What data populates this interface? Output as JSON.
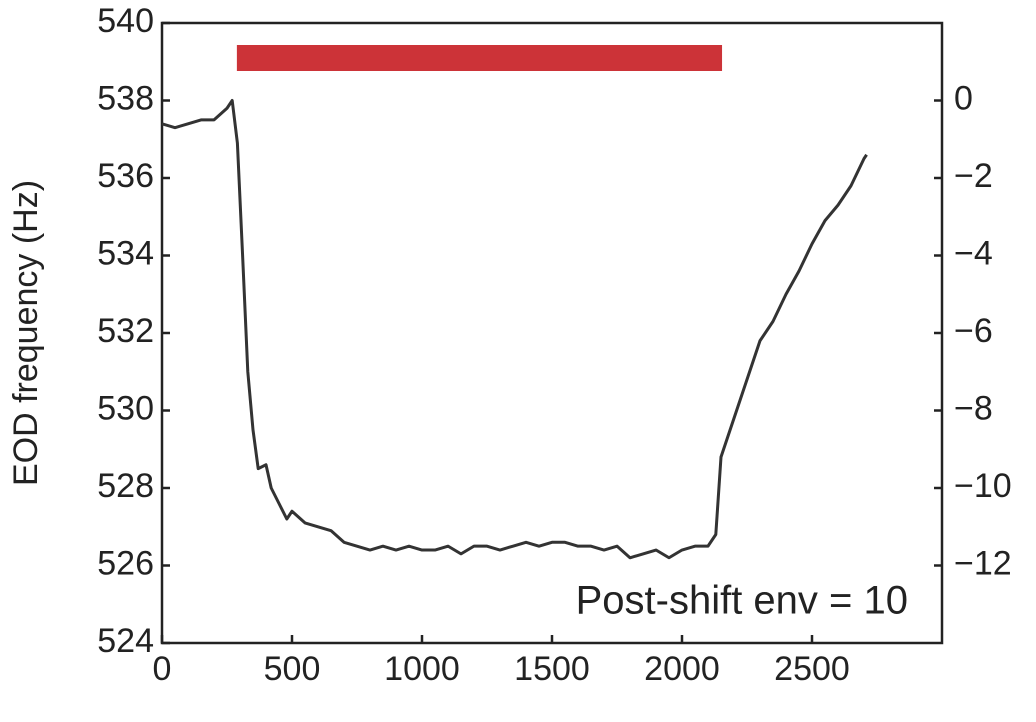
{
  "chart_data": {
    "type": "line",
    "ylabel": "EOD frequency (Hz)",
    "annotation": {
      "text": "Post-shift env = 10",
      "color": "#cc3338"
    },
    "stimulus_bar": {
      "x": [
        288,
        2154
      ],
      "color": "#cc3338"
    },
    "xlim": [
      0,
      3000
    ],
    "xticks": [
      0,
      500,
      1000,
      1500,
      2000,
      2500
    ],
    "ylim": [
      524,
      540
    ],
    "yticks": [
      524,
      526,
      528,
      530,
      532,
      534,
      536,
      538,
      540
    ],
    "y2lim": [
      -14,
      2
    ],
    "y2ticks": [
      {
        "value": 0,
        "label": "0"
      },
      {
        "value": -2,
        "label": "−2"
      },
      {
        "value": -4,
        "label": "−4"
      },
      {
        "value": -6,
        "label": "−6"
      },
      {
        "value": -8,
        "label": "−8"
      },
      {
        "value": -10,
        "label": "−10"
      },
      {
        "value": -12,
        "label": "−12"
      }
    ],
    "x": [
      0,
      50,
      100,
      150,
      200,
      250,
      270,
      290,
      310,
      330,
      350,
      370,
      400,
      420,
      450,
      480,
      500,
      550,
      600,
      650,
      700,
      750,
      800,
      850,
      900,
      950,
      1000,
      1050,
      1100,
      1150,
      1200,
      1250,
      1300,
      1350,
      1400,
      1450,
      1500,
      1550,
      1600,
      1650,
      1700,
      1750,
      1800,
      1850,
      1900,
      1950,
      2000,
      2050,
      2100,
      2130,
      2150,
      2200,
      2250,
      2300,
      2350,
      2400,
      2450,
      2500,
      2550,
      2600,
      2650,
      2700,
      2710
    ],
    "series": [
      {
        "color": "#333333",
        "values": [
          537.4,
          537.3,
          537.4,
          537.5,
          537.5,
          537.8,
          538.0,
          536.9,
          534.0,
          531.0,
          529.5,
          528.5,
          528.6,
          528.0,
          527.6,
          527.2,
          527.4,
          527.1,
          527.0,
          526.9,
          526.6,
          526.5,
          526.4,
          526.5,
          526.4,
          526.5,
          526.4,
          526.4,
          526.5,
          526.3,
          526.5,
          526.5,
          526.4,
          526.5,
          526.6,
          526.5,
          526.6,
          526.6,
          526.5,
          526.5,
          526.4,
          526.5,
          526.2,
          526.3,
          526.4,
          526.2,
          526.4,
          526.5,
          526.5,
          526.8,
          528.8,
          529.8,
          530.8,
          531.8,
          532.3,
          533.0,
          533.6,
          534.3,
          534.9,
          535.3,
          535.8,
          536.5,
          536.6
        ]
      }
    ]
  }
}
